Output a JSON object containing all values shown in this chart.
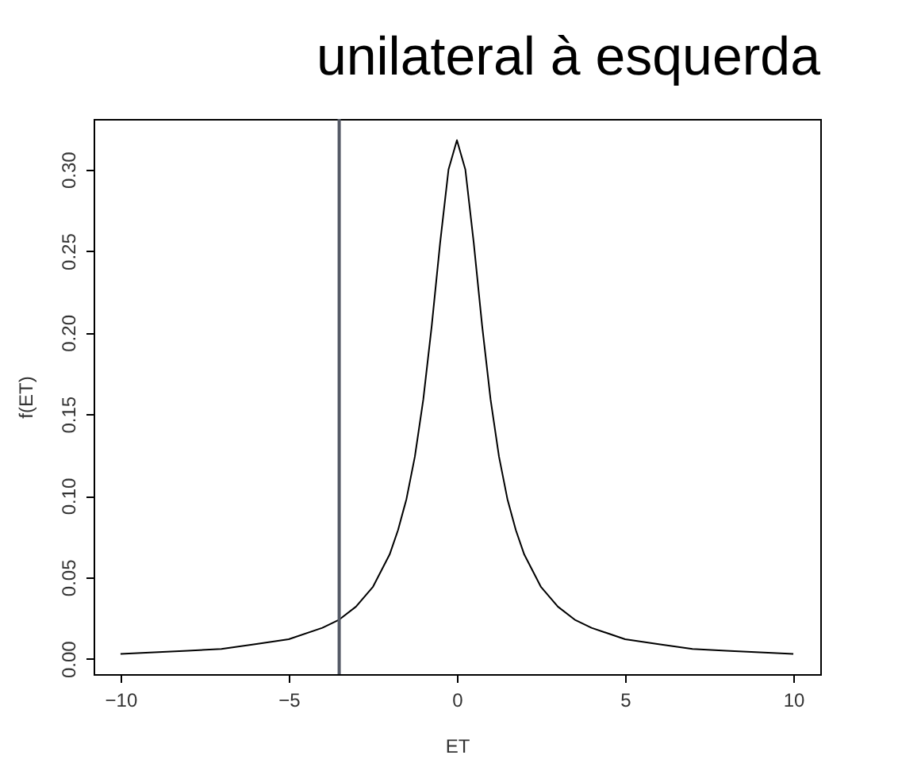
{
  "chart_data": {
    "type": "line",
    "title": "unilateral à esquerda",
    "xlabel": "ET",
    "ylabel": "f(ET)",
    "x": [
      -10,
      -9,
      -8,
      -7,
      -6,
      -5,
      -4,
      -3.5,
      -3,
      -2.5,
      -2,
      -1.75,
      -1.5,
      -1.25,
      -1,
      -0.75,
      -0.5,
      -0.25,
      0,
      0.25,
      0.5,
      0.75,
      1,
      1.25,
      1.5,
      1.75,
      2,
      2.5,
      3,
      3.5,
      4,
      5,
      6,
      7,
      8,
      9,
      10
    ],
    "series": [
      {
        "color": "#000000",
        "values": [
          0.003,
          0.004,
          0.005,
          0.006,
          0.009,
          0.012,
          0.019,
          0.024,
          0.032,
          0.044,
          0.064,
          0.079,
          0.098,
          0.124,
          0.159,
          0.204,
          0.255,
          0.3,
          0.318,
          0.3,
          0.255,
          0.204,
          0.159,
          0.124,
          0.098,
          0.079,
          0.064,
          0.044,
          0.032,
          0.024,
          0.019,
          0.012,
          0.009,
          0.006,
          0.005,
          0.004,
          0.003
        ]
      }
    ],
    "xlim": [
      -10.8,
      10.8
    ],
    "ylim": [
      -0.0094,
      0.331
    ],
    "xticks": [
      -10,
      -5,
      0,
      5,
      10
    ],
    "yticks": [
      {
        "value": 0,
        "label": "0.00"
      },
      {
        "value": 0.05,
        "label": "0.05"
      },
      {
        "value": 0.1,
        "label": "0.10"
      },
      {
        "value": 0.15,
        "label": "0.15"
      },
      {
        "value": 0.2,
        "label": "0.20"
      },
      {
        "value": 0.25,
        "label": "0.25"
      },
      {
        "value": 0.3,
        "label": "0.30"
      }
    ],
    "ref_lines": [
      {
        "axis": "x",
        "value": -3.5,
        "color": "#555a66"
      }
    ],
    "grid": false
  }
}
